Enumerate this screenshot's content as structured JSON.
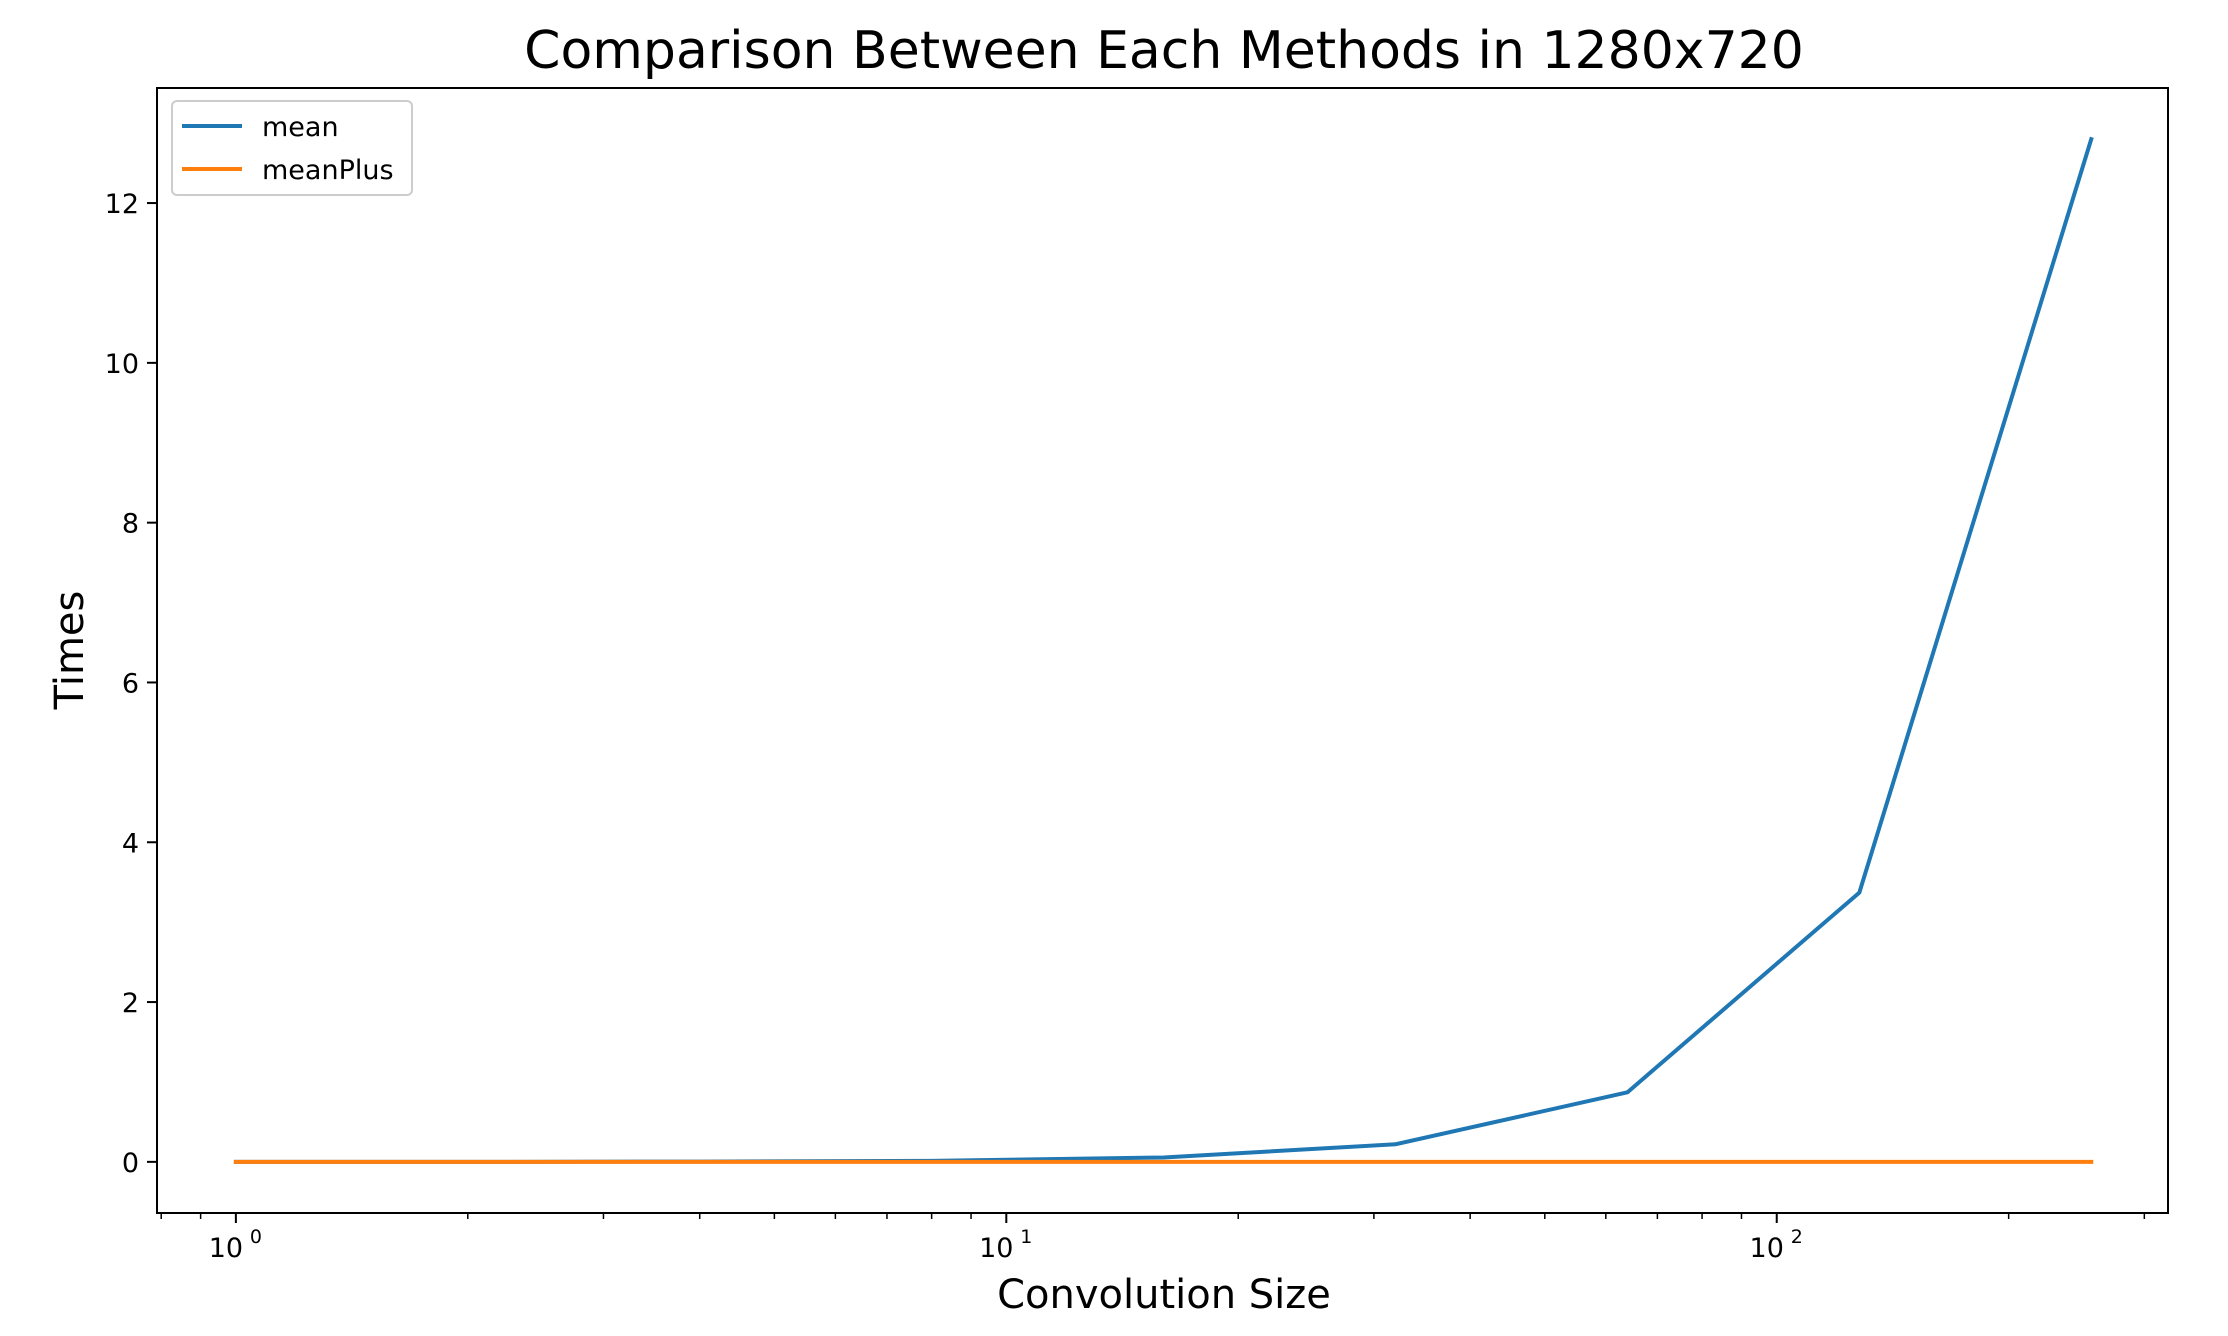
{
  "chart_data": {
    "type": "line",
    "title": "Comparison Between Each Methods in 1280x720",
    "xlabel": "Convolution Size",
    "ylabel": "Times",
    "xscale": "log",
    "xlim": [
      0.79,
      322
    ],
    "ylim": [
      -0.64,
      13.44
    ],
    "x_ticks": [
      1,
      10,
      100
    ],
    "x_tick_labels": [
      {
        "base": "10",
        "exp": "0"
      },
      {
        "base": "10",
        "exp": "1"
      },
      {
        "base": "10",
        "exp": "2"
      }
    ],
    "y_ticks": [
      0,
      2,
      4,
      6,
      8,
      10,
      12
    ],
    "y_tick_labels": [
      "0",
      "2",
      "4",
      "6",
      "8",
      "10",
      "12"
    ],
    "grid": false,
    "legend_position": "upper-left",
    "x": [
      1,
      2,
      4,
      8,
      16,
      32,
      64,
      128,
      256
    ],
    "series": [
      {
        "name": "mean",
        "color": "#1f77b4",
        "values": [
          0.0,
          0.0,
          0.003,
          0.013,
          0.055,
          0.22,
          0.87,
          3.37,
          12.8
        ]
      },
      {
        "name": "meanPlus",
        "color": "#ff7f0e",
        "values": [
          0.0,
          0.0,
          0.0,
          0.0,
          0.0,
          0.0,
          0.0,
          0.0,
          0.0
        ]
      }
    ]
  }
}
